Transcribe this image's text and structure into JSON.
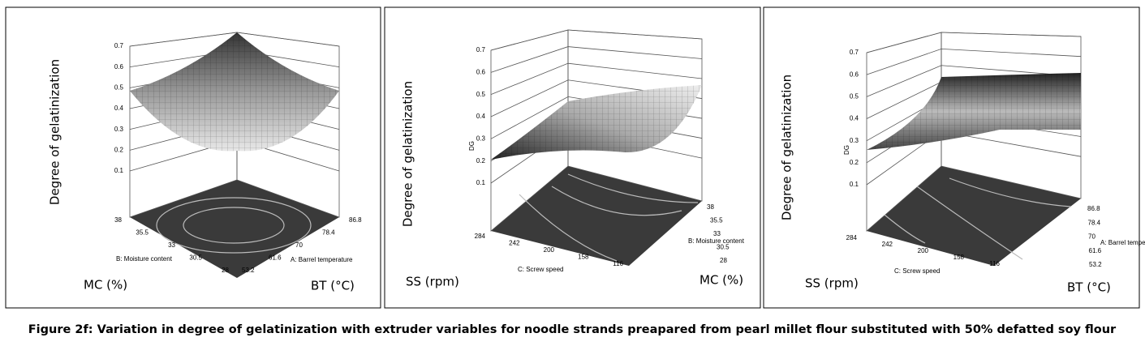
{
  "panels": [
    {
      "z_axis_label": "Degree of gelatinization",
      "z_ticks": [
        0.7,
        0.6,
        0.5,
        0.4,
        0.3,
        0.2,
        0.1
      ],
      "left_axis": {
        "label": "MC (%)",
        "name": "B: Moisture content",
        "ticks": [
          38,
          35.5,
          33,
          30.5,
          28
        ]
      },
      "right_axis": {
        "label": "BT (°C)",
        "name": "A: Barrel temperature",
        "ticks": [
          86.8,
          78.4,
          70,
          61.6,
          53.2
        ]
      }
    },
    {
      "z_axis_label": "Degree of gelatinization",
      "z_axis_name": "DG",
      "z_ticks": [
        0.7,
        0.6,
        0.5,
        0.4,
        0.3,
        0.2,
        0.1
      ],
      "left_axis": {
        "label": "SS (rpm)",
        "name": "C: Screw speed",
        "ticks": [
          284,
          242,
          200,
          158,
          116
        ]
      },
      "right_axis": {
        "label": "MC (%)",
        "name": "B: Moisture content",
        "ticks": [
          38,
          35.5,
          33,
          30.5,
          28
        ]
      }
    },
    {
      "z_axis_label": "Degree of gelatinization",
      "z_axis_name": "DG",
      "z_ticks": [
        0.7,
        0.6,
        0.5,
        0.4,
        0.3,
        0.2,
        0.1
      ],
      "left_axis": {
        "label": "SS (rpm)",
        "name": "C: Screw speed",
        "ticks": [
          284,
          242,
          200,
          158,
          116
        ]
      },
      "right_axis": {
        "label": "BT (°C)",
        "name": "A: Barrel temperature",
        "ticks": [
          86.8,
          78.4,
          70,
          61.6,
          53.2
        ]
      }
    }
  ],
  "caption": "Figure 2f: Variation in degree of gelatinization with extruder variables for noodle strands preapared from pearl millet flour substituted with 50% defatted soy flour"
}
